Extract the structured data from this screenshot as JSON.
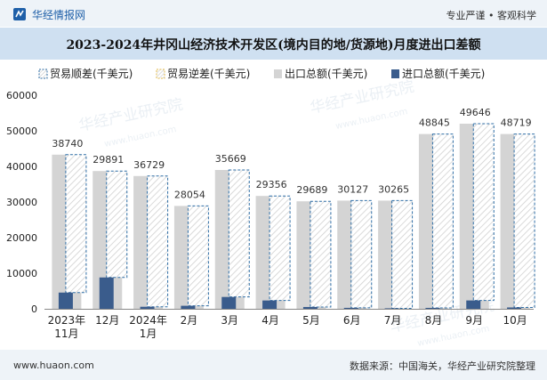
{
  "header": {
    "brand_name": "华经情报网",
    "tagline": "专业严谨 • 客观科学"
  },
  "title": "2023-2024年井冈山经济技术开发区(境内目的地/货源地)月度进出口差额",
  "footer": {
    "website": "www.huaon.com",
    "source": "数据来源：中国海关，华经产业研究院整理"
  },
  "watermark": {
    "cn": "华经产业研究院",
    "en": "www.huaon.com"
  },
  "colors": {
    "export": "#d4d4d4",
    "import": "#3a5c8c",
    "surplus_stroke": "#2f6ea6",
    "deficit_stroke": "#e0b84a"
  },
  "chart_data": {
    "type": "bar",
    "categories": [
      [
        "2023年",
        "11月"
      ],
      [
        "12月"
      ],
      [
        "2024年",
        "1月"
      ],
      [
        "2月"
      ],
      [
        "3月"
      ],
      [
        "4月"
      ],
      [
        "5月"
      ],
      [
        "6月"
      ],
      [
        "7月"
      ],
      [
        "8月"
      ],
      [
        "9月"
      ],
      [
        "10月"
      ]
    ],
    "series": [
      {
        "name": "贸易顺差(千美元)",
        "values": [
          38740,
          29891,
          36729,
          28054,
          35669,
          29356,
          29689,
          30127,
          30265,
          48845,
          49646,
          48719
        ]
      },
      {
        "name": "贸易逆差(千美元)",
        "values": [
          0,
          0,
          0,
          0,
          0,
          0,
          0,
          0,
          0,
          0,
          0,
          0
        ]
      },
      {
        "name": "出口总额(千美元)",
        "values": [
          43300,
          38700,
          37300,
          28900,
          39000,
          31700,
          30200,
          30400,
          30400,
          49100,
          52000,
          49100
        ]
      },
      {
        "name": "进口总额(千美元)",
        "values": [
          4560,
          8810,
          570,
          850,
          3330,
          2340,
          510,
          270,
          140,
          260,
          2350,
          380
        ]
      }
    ],
    "data_labels": [
      "38740",
      "29891",
      "36729",
      "28054",
      "35669",
      "29356",
      "29689",
      "30127",
      "30265",
      "48845",
      "49646",
      "48719"
    ],
    "yaxis": {
      "min": 0,
      "max": 60000,
      "ticks": [
        "0",
        "10000",
        "20000",
        "30000",
        "40000",
        "50000",
        "60000"
      ]
    },
    "legend_position": "top",
    "grid": false
  }
}
